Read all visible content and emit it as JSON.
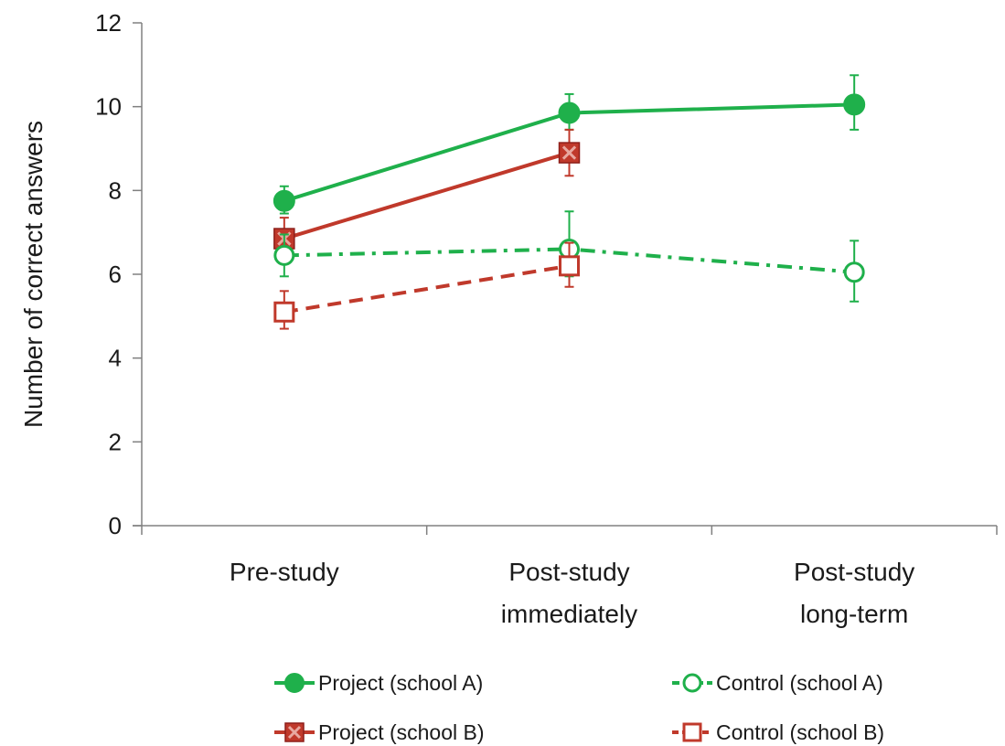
{
  "chart_data": {
    "type": "line",
    "title": "",
    "xlabel": "",
    "ylabel": "Number of correct answers",
    "ylim": [
      0,
      12
    ],
    "yticks": [
      0,
      2,
      4,
      6,
      8,
      10,
      12
    ],
    "categories": [
      [
        "Pre-study"
      ],
      [
        "Post-study",
        "immediately"
      ],
      [
        "Post-study",
        "long-term"
      ]
    ],
    "grid": false,
    "legend_position": "bottom",
    "series": [
      {
        "name": "Project (school A)",
        "color": "#1fb04b",
        "line_style": "solid",
        "marker": "filled-circle",
        "values": [
          7.75,
          9.85,
          10.05
        ],
        "error_low": [
          7.45,
          9.45,
          9.45
        ],
        "error_high": [
          8.1,
          10.3,
          10.75
        ]
      },
      {
        "name": "Project (school B)",
        "color": "#c0392b",
        "line_style": "solid",
        "marker": "filled-square-x",
        "values": [
          6.85,
          8.9,
          null
        ],
        "error_low": [
          6.45,
          8.35,
          null
        ],
        "error_high": [
          7.35,
          9.45,
          null
        ]
      },
      {
        "name": "Control (school A)",
        "color": "#1fb04b",
        "line_style": "dash-dot",
        "marker": "open-circle",
        "values": [
          6.45,
          6.6,
          6.05
        ],
        "error_low": [
          5.95,
          5.95,
          5.35
        ],
        "error_high": [
          6.95,
          7.5,
          6.8
        ]
      },
      {
        "name": "Control (school B)",
        "color": "#c0392b",
        "line_style": "dashed",
        "marker": "open-square",
        "values": [
          5.1,
          6.2,
          null
        ],
        "error_low": [
          4.7,
          5.7,
          null
        ],
        "error_high": [
          5.6,
          6.75,
          null
        ]
      }
    ]
  },
  "legend": [
    {
      "label": "Project (school A)",
      "series_index": 0
    },
    {
      "label": "Control (school A)",
      "series_index": 2
    },
    {
      "label": "Project (school B)",
      "series_index": 1
    },
    {
      "label": "Control (school B)",
      "series_index": 3
    }
  ]
}
